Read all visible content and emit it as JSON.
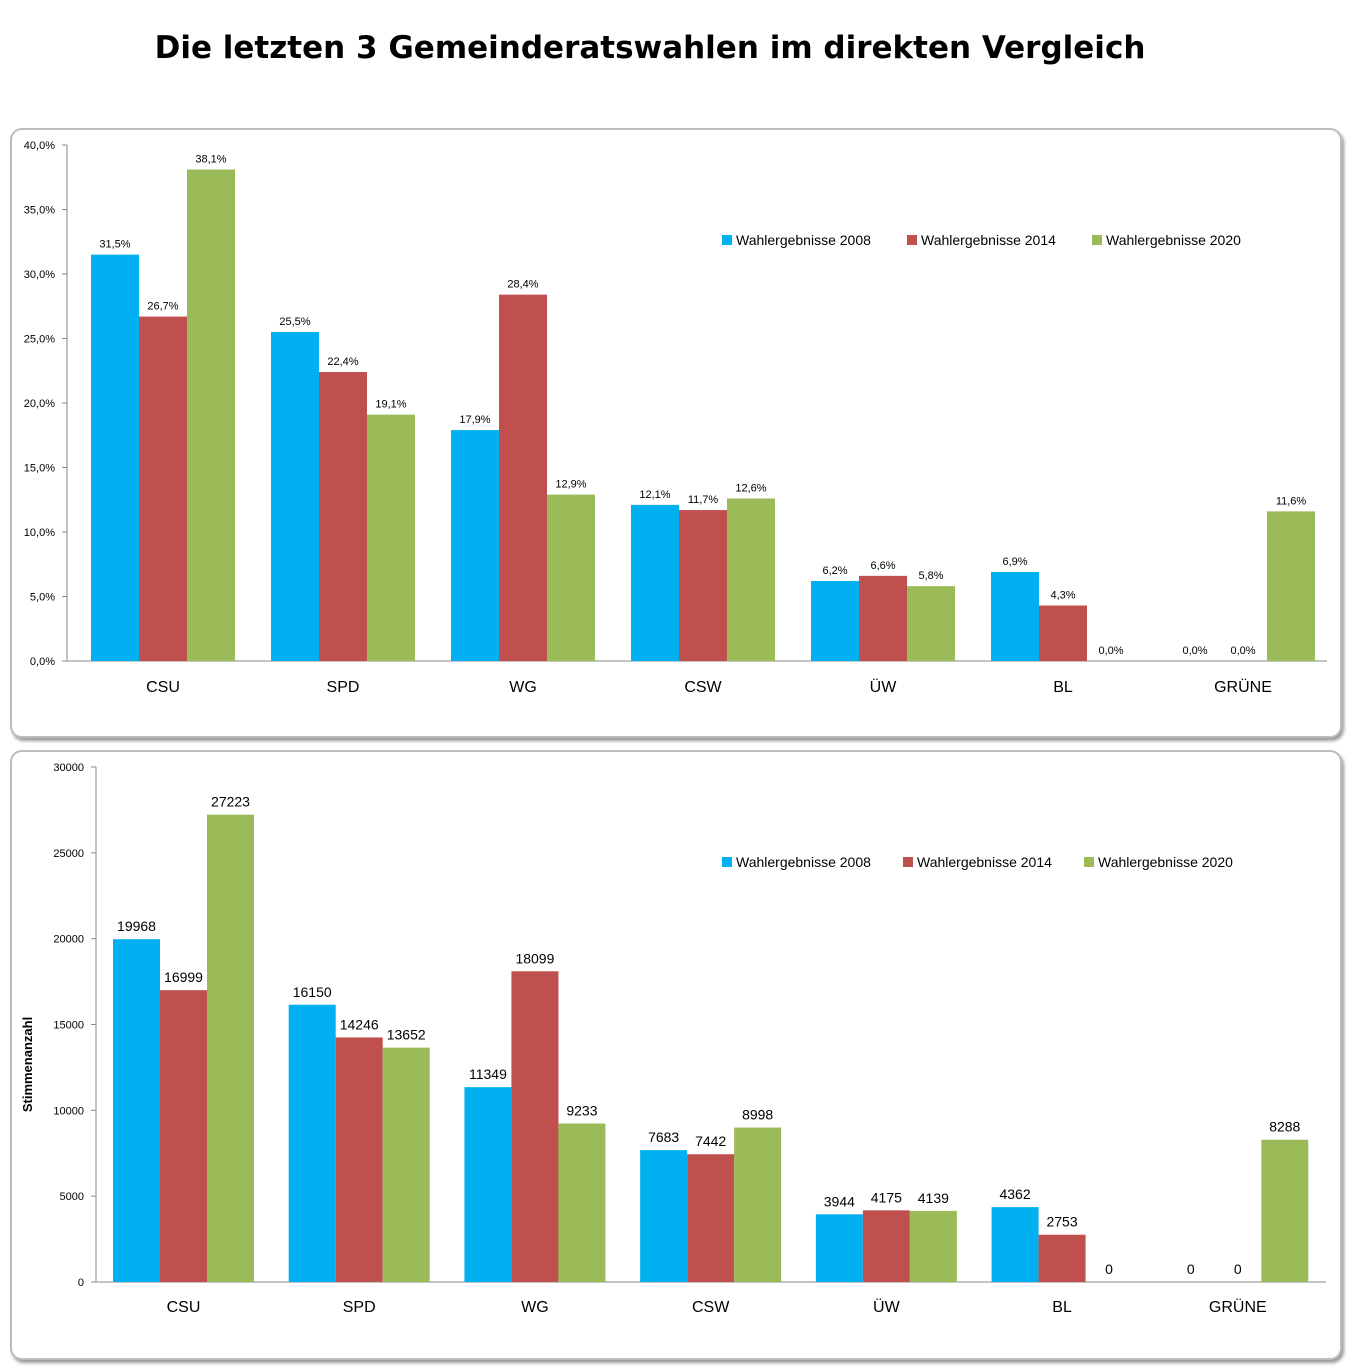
{
  "title": "Die letzten 3 Gemeinderatswahlen im direkten Vergleich",
  "colors": {
    "s2008": "#00b0f0",
    "s2014": "#c0504d",
    "s2020": "#9bbb59"
  },
  "chart_data": [
    {
      "type": "bar",
      "categories": [
        "CSU",
        "SPD",
        "WG",
        "CSW",
        "ÜW",
        "BL",
        "GRÜNE"
      ],
      "series": [
        {
          "name": "Wahlergebnisse 2008",
          "values": [
            31.5,
            25.5,
            17.9,
            12.1,
            6.2,
            6.9,
            0.0
          ],
          "labels": [
            "31,5%",
            "25,5%",
            "17,9%",
            "12,1%",
            "6,2%",
            "6,9%",
            "0,0%"
          ]
        },
        {
          "name": "Wahlergebnisse 2014",
          "values": [
            26.7,
            22.4,
            28.4,
            11.7,
            6.6,
            4.3,
            0.0
          ],
          "labels": [
            "26,7%",
            "22,4%",
            "28,4%",
            "11,7%",
            "6,6%",
            "4,3%",
            "0,0%"
          ]
        },
        {
          "name": "Wahlergebnisse 2020",
          "values": [
            38.1,
            19.1,
            12.9,
            12.6,
            5.8,
            0.0,
            11.6
          ],
          "labels": [
            "38,1%",
            "19,1%",
            "12,9%",
            "12,6%",
            "5,8%",
            "0,0%",
            "11,6%"
          ]
        }
      ],
      "ylim": [
        0,
        40
      ],
      "yticks": [
        0,
        5,
        10,
        15,
        20,
        25,
        30,
        35,
        40
      ],
      "ytick_labels": [
        "0,0%",
        "5,0%",
        "10,0%",
        "15,0%",
        "20,0%",
        "25,0%",
        "30,0%",
        "35,0%",
        "40,0%"
      ],
      "xlabel": "",
      "ylabel": "",
      "grid": false,
      "legend": "top-right"
    },
    {
      "type": "bar",
      "categories": [
        "CSU",
        "SPD",
        "WG",
        "CSW",
        "ÜW",
        "BL",
        "GRÜNE"
      ],
      "series": [
        {
          "name": "Wahlergebnisse 2008",
          "values": [
            19968,
            16150,
            11349,
            7683,
            3944,
            4362,
            0
          ],
          "labels": [
            "19968",
            "16150",
            "11349",
            "7683",
            "3944",
            "4362",
            "0"
          ]
        },
        {
          "name": "Wahlergebnisse 2014",
          "values": [
            16999,
            14246,
            18099,
            7442,
            4175,
            2753,
            0
          ],
          "labels": [
            "16999",
            "14246",
            "18099",
            "7442",
            "4175",
            "2753",
            "0"
          ]
        },
        {
          "name": "Wahlergebnisse 2020",
          "values": [
            27223,
            13652,
            9233,
            8998,
            4139,
            0,
            8288
          ],
          "labels": [
            "27223",
            "13652",
            "9233",
            "8998",
            "4139",
            "0",
            "8288"
          ]
        }
      ],
      "ylim": [
        0,
        30000
      ],
      "yticks": [
        0,
        5000,
        10000,
        15000,
        20000,
        25000,
        30000
      ],
      "ytick_labels": [
        "0",
        "5000",
        "10000",
        "15000",
        "20000",
        "25000",
        "30000"
      ],
      "xlabel": "",
      "ylabel": "Stimmenanzahl",
      "grid": false,
      "legend": "top-right"
    }
  ]
}
